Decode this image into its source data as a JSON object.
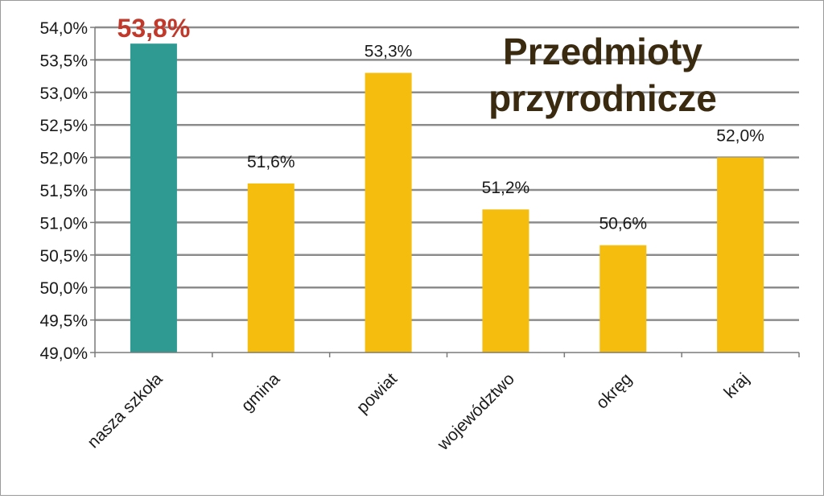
{
  "chart_data": {
    "type": "bar",
    "title": "Przedmioty przyrodnicze",
    "title_lines": [
      "Przedmioty",
      "przyrodnicze"
    ],
    "categories": [
      "nasza szkoła",
      "gmina",
      "powiat",
      "województwo",
      "okręg",
      "kraj"
    ],
    "values": [
      53.75,
      51.6,
      53.3,
      51.2,
      50.65,
      52.0
    ],
    "data_labels": [
      "53,8%",
      "51,6%",
      "53,3%",
      "51,2%",
      "50,6%",
      "52,0%"
    ],
    "highlight_index": 0,
    "ylim": [
      49.0,
      54.0
    ],
    "yticks": [
      49.0,
      49.5,
      50.0,
      50.5,
      51.0,
      51.5,
      52.0,
      52.5,
      53.0,
      53.5,
      54.0
    ],
    "ytick_labels": [
      "49,0%",
      "49,5%",
      "50,0%",
      "50,5%",
      "51,0%",
      "51,5%",
      "52,0%",
      "52,5%",
      "53,0%",
      "53,5%",
      "54,0%"
    ],
    "grid": true,
    "xlabel": "",
    "ylabel": "",
    "colors": {
      "highlight_bar": "#2e9a92",
      "bar": "#f5be0e",
      "highlight_label": "#c0392b",
      "title": "#3a2a10",
      "grid": "#8c8c8c",
      "axis": "#7a7a7a",
      "text": "#1a1a1a"
    }
  }
}
